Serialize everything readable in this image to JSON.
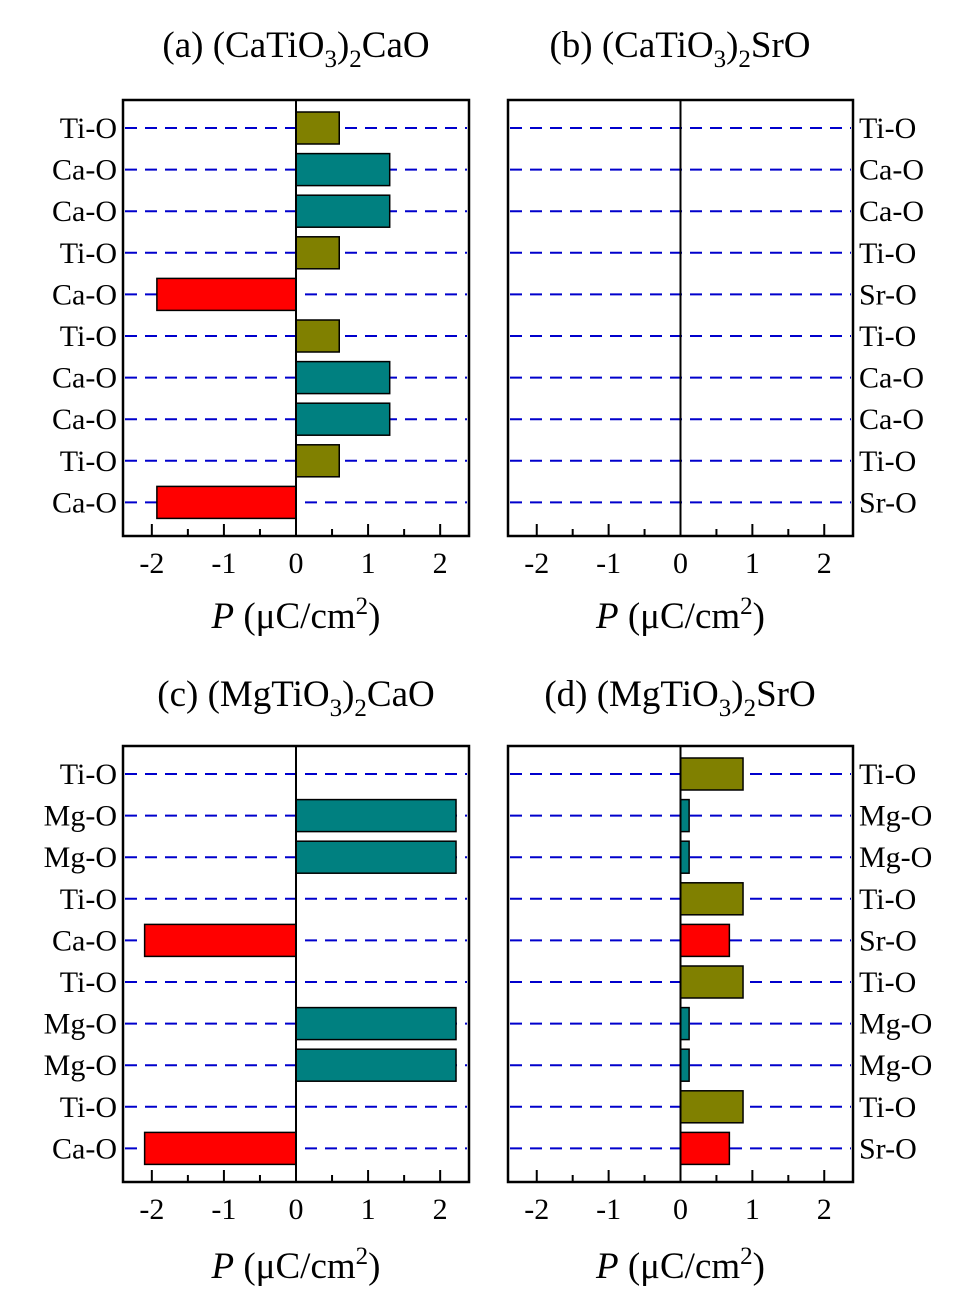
{
  "chart_data": [
    {
      "panel": "a",
      "type": "bar",
      "orientation": "horizontal",
      "title": {
        "prefix": "(a) (CaTiO",
        "sub1": "3",
        "mid": ")",
        "sub2": "2",
        "suffix": "CaO"
      },
      "xlabel": {
        "var": "P",
        "unit_prefix": " (μC/cm",
        "sup": "2",
        "unit_suffix": ")"
      },
      "xlim": [
        -2.4,
        2.4
      ],
      "xticks": [
        -2,
        -1,
        0,
        1,
        2
      ],
      "label_side": "left",
      "categories": [
        "Ti-O",
        "Ca-O",
        "Ca-O",
        "Ti-O",
        "Ca-O",
        "Ti-O",
        "Ca-O",
        "Ca-O",
        "Ti-O",
        "Ca-O"
      ],
      "values": [
        0.6,
        1.3,
        1.3,
        0.6,
        -1.93,
        0.6,
        1.3,
        1.3,
        0.6,
        -1.93
      ],
      "bar_colors": [
        "#808000",
        "#008080",
        "#008080",
        "#808000",
        "#ff0000",
        "#808000",
        "#008080",
        "#008080",
        "#808000",
        "#ff0000"
      ],
      "grid": "dashed horizontal lines at each layer"
    },
    {
      "panel": "b",
      "type": "bar",
      "orientation": "horizontal",
      "title": {
        "prefix": "(b) (CaTiO",
        "sub1": "3",
        "mid": ")",
        "sub2": "2",
        "suffix": "SrO"
      },
      "xlabel": {
        "var": "P",
        "unit_prefix": " (μC/cm",
        "sup": "2",
        "unit_suffix": ")"
      },
      "xlim": [
        -2.4,
        2.4
      ],
      "xticks": [
        -2,
        -1,
        0,
        1,
        2
      ],
      "label_side": "right",
      "categories": [
        "Ti-O",
        "Ca-O",
        "Ca-O",
        "Ti-O",
        "Sr-O",
        "Ti-O",
        "Ca-O",
        "Ca-O",
        "Ti-O",
        "Sr-O"
      ],
      "values": [
        0,
        0,
        0,
        0,
        0,
        0,
        0,
        0,
        0,
        0
      ],
      "bar_colors": [
        "#808000",
        "#008080",
        "#008080",
        "#808000",
        "#ff0000",
        "#808000",
        "#008080",
        "#008080",
        "#808000",
        "#ff0000"
      ],
      "grid": "dashed horizontal lines at each layer"
    },
    {
      "panel": "c",
      "type": "bar",
      "orientation": "horizontal",
      "title": {
        "prefix": "(c) (MgTiO",
        "sub1": "3",
        "mid": ")",
        "sub2": "2",
        "suffix": "CaO"
      },
      "xlabel": {
        "var": "P",
        "unit_prefix": " (μC/cm",
        "sup": "2",
        "unit_suffix": ")"
      },
      "xlim": [
        -2.4,
        2.4
      ],
      "xticks": [
        -2,
        -1,
        0,
        1,
        2
      ],
      "label_side": "left",
      "categories": [
        "Ti-O",
        "Mg-O",
        "Mg-O",
        "Ti-O",
        "Ca-O",
        "Ti-O",
        "Mg-O",
        "Mg-O",
        "Ti-O",
        "Ca-O"
      ],
      "values": [
        0,
        2.22,
        2.22,
        0,
        -2.1,
        0,
        2.22,
        2.22,
        0,
        -2.1
      ],
      "bar_colors": [
        "#808000",
        "#008080",
        "#008080",
        "#808000",
        "#ff0000",
        "#808000",
        "#008080",
        "#008080",
        "#808000",
        "#ff0000"
      ],
      "grid": "dashed horizontal lines at each layer"
    },
    {
      "panel": "d",
      "type": "bar",
      "orientation": "horizontal",
      "title": {
        "prefix": "(d) (MgTiO",
        "sub1": "3",
        "mid": ")",
        "sub2": "2",
        "suffix": "SrO"
      },
      "xlabel": {
        "var": "P",
        "unit_prefix": " (μC/cm",
        "sup": "2",
        "unit_suffix": ")"
      },
      "xlim": [
        -2.4,
        2.4
      ],
      "xticks": [
        -2,
        -1,
        0,
        1,
        2
      ],
      "label_side": "right",
      "categories": [
        "Ti-O",
        "Mg-O",
        "Mg-O",
        "Ti-O",
        "Sr-O",
        "Ti-O",
        "Mg-O",
        "Mg-O",
        "Ti-O",
        "Sr-O"
      ],
      "values": [
        0.87,
        0.12,
        0.12,
        0.87,
        0.68,
        0.87,
        0.12,
        0.12,
        0.87,
        0.68
      ],
      "bar_colors": [
        "#808000",
        "#008080",
        "#008080",
        "#808000",
        "#ff0000",
        "#808000",
        "#008080",
        "#008080",
        "#808000",
        "#ff0000"
      ],
      "grid": "dashed horizontal lines at each layer"
    }
  ],
  "colors": {
    "ti_o": "#808000",
    "a_site_o": "#008080",
    "interlayer_o": "#ff0000",
    "gridline": "#0000cc",
    "axis": "#000000"
  }
}
